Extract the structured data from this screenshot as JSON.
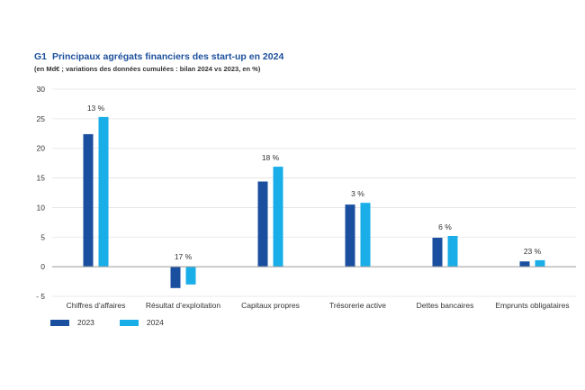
{
  "header": {
    "tag": "G1",
    "title": "Principaux agrégats financiers des start-up en 2024",
    "subtitle": "(en Md€ ; variations des données cumulées : bilan 2024 vs 2023, en %)"
  },
  "colors": {
    "2023": "#1a4fa0",
    "2024": "#1aaee8",
    "grid": "#e3e3e3",
    "axis": "#9a9a9a"
  },
  "chart_data": {
    "type": "bar",
    "title": "Principaux agrégats financiers des start-up en 2024",
    "categories": [
      "Chiffres d’affaires",
      "Résultat d’exploitation",
      "Capitaux propres",
      "Trésorerie active",
      "Dettes bancaires",
      "Emprunts obligataires"
    ],
    "series": [
      {
        "name": "2023",
        "values": [
          22.4,
          -3.6,
          14.4,
          10.5,
          4.9,
          0.9
        ]
      },
      {
        "name": "2024",
        "values": [
          25.3,
          -3.0,
          16.9,
          10.8,
          5.2,
          1.1
        ]
      }
    ],
    "annotations": [
      "13 %",
      "17 %",
      "18 %",
      "3 %",
      "6 %",
      "23 %"
    ],
    "ylim": [
      -5,
      30
    ],
    "yticks": [
      -5,
      0,
      5,
      10,
      15,
      20,
      25,
      30
    ],
    "ytick_labels": [
      "- 5",
      "0",
      "5",
      "10",
      "15",
      "20",
      "25",
      "30"
    ],
    "xlabel": "",
    "ylabel": "",
    "legend": [
      "2023",
      "2024"
    ],
    "legend_position": "bottom-left",
    "grid": true
  }
}
